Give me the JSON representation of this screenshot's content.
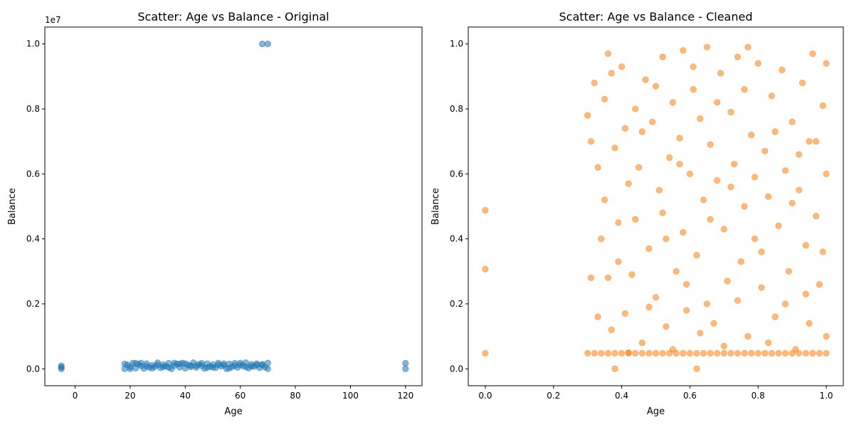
{
  "figure": {
    "charts": [
      {
        "type": "scatter",
        "title": "Scatter: Age vs Balance - Original",
        "xlabel": "Age",
        "ylabel": "Balance",
        "xlim": [
          -11,
          126
        ],
        "ylim": [
          -520000,
          10520000
        ],
        "xticks": [
          0,
          20,
          40,
          60,
          80,
          100,
          120
        ],
        "xtick_labels": [
          "0",
          "20",
          "40",
          "60",
          "80",
          "100",
          "120"
        ],
        "yticks": [
          0,
          2000000,
          4000000,
          6000000,
          8000000,
          10000000
        ],
        "ytick_labels": [
          "0.0",
          "0.2",
          "0.4",
          "0.6",
          "0.8",
          "1.0"
        ],
        "offset_label": "1e7",
        "color": "#1f77b4",
        "alpha": 0.55,
        "points": [
          [
            -5,
            0
          ],
          [
            -5,
            50000
          ],
          [
            -5,
            90000
          ],
          [
            120,
            0
          ],
          [
            120,
            170000
          ],
          [
            68,
            10000000
          ],
          [
            70,
            10000000
          ],
          [
            18,
            0
          ],
          [
            19,
            120000
          ],
          [
            20,
            60000
          ],
          [
            21,
            180000
          ],
          [
            22,
            20000
          ],
          [
            23,
            140000
          ],
          [
            24,
            90000
          ],
          [
            25,
            10000
          ],
          [
            26,
            160000
          ],
          [
            27,
            40000
          ],
          [
            28,
            110000
          ],
          [
            29,
            70000
          ],
          [
            30,
            190000
          ],
          [
            31,
            30000
          ],
          [
            32,
            130000
          ],
          [
            33,
            80000
          ],
          [
            34,
            170000
          ],
          [
            35,
            0
          ],
          [
            36,
            100000
          ],
          [
            37,
            150000
          ],
          [
            38,
            50000
          ],
          [
            39,
            180000
          ],
          [
            40,
            20000
          ],
          [
            41,
            120000
          ],
          [
            42,
            60000
          ],
          [
            43,
            190000
          ],
          [
            44,
            40000
          ],
          [
            45,
            140000
          ],
          [
            46,
            90000
          ],
          [
            47,
            10000
          ],
          [
            48,
            160000
          ],
          [
            49,
            70000
          ],
          [
            50,
            130000
          ],
          [
            51,
            30000
          ],
          [
            52,
            180000
          ],
          [
            53,
            80000
          ],
          [
            54,
            110000
          ],
          [
            55,
            0
          ],
          [
            56,
            150000
          ],
          [
            57,
            60000
          ],
          [
            58,
            170000
          ],
          [
            59,
            40000
          ],
          [
            60,
            120000
          ],
          [
            61,
            90000
          ],
          [
            62,
            190000
          ],
          [
            63,
            20000
          ],
          [
            64,
            140000
          ],
          [
            65,
            70000
          ],
          [
            66,
            160000
          ],
          [
            67,
            30000
          ],
          [
            68,
            110000
          ],
          [
            69,
            50000
          ],
          [
            70,
            180000
          ],
          [
            70,
            0
          ],
          [
            18,
            150000
          ],
          [
            22,
            170000
          ],
          [
            26,
            80000
          ],
          [
            30,
            120000
          ],
          [
            34,
            40000
          ],
          [
            38,
            150000
          ],
          [
            42,
            100000
          ],
          [
            46,
            170000
          ],
          [
            50,
            50000
          ],
          [
            54,
            160000
          ],
          [
            58,
            100000
          ],
          [
            62,
            60000
          ],
          [
            66,
            120000
          ],
          [
            20,
            0
          ],
          [
            24,
            180000
          ],
          [
            28,
            20000
          ],
          [
            32,
            60000
          ],
          [
            36,
            180000
          ],
          [
            40,
            160000
          ],
          [
            44,
            100000
          ],
          [
            48,
            40000
          ],
          [
            52,
            120000
          ],
          [
            56,
            20000
          ],
          [
            60,
            180000
          ],
          [
            64,
            80000
          ],
          [
            68,
            140000
          ]
        ]
      },
      {
        "type": "scatter",
        "title": "Scatter: Age vs Balance - Cleaned",
        "xlabel": "Age",
        "ylabel": "Balance",
        "xlim": [
          -0.05,
          1.05
        ],
        "ylim": [
          -0.052,
          1.052
        ],
        "xticks": [
          0,
          0.2,
          0.4,
          0.6,
          0.8,
          1.0
        ],
        "xtick_labels": [
          "0.0",
          "0.2",
          "0.4",
          "0.6",
          "0.8",
          "1.0"
        ],
        "yticks": [
          0,
          0.2,
          0.4,
          0.6,
          0.8,
          1.0
        ],
        "ytick_labels": [
          "0.0",
          "0.2",
          "0.4",
          "0.6",
          "0.8",
          "1.0"
        ],
        "color": "#ff7f0e",
        "alpha": 0.55,
        "points": [
          [
            0.0,
            0.488
          ],
          [
            0.0,
            0.307
          ],
          [
            0.0,
            0.048
          ],
          [
            0.38,
            0.0
          ],
          [
            0.62,
            0.0
          ],
          [
            0.3,
            0.78
          ],
          [
            0.31,
            0.28
          ],
          [
            0.32,
            0.88
          ],
          [
            0.33,
            0.62
          ],
          [
            0.34,
            0.4
          ],
          [
            0.35,
            0.83
          ],
          [
            0.36,
            0.97
          ],
          [
            0.36,
            0.28
          ],
          [
            0.37,
            0.12
          ],
          [
            0.38,
            0.68
          ],
          [
            0.39,
            0.45
          ],
          [
            0.4,
            0.93
          ],
          [
            0.41,
            0.74
          ],
          [
            0.41,
            0.17
          ],
          [
            0.42,
            0.57
          ],
          [
            0.43,
            0.29
          ],
          [
            0.44,
            0.8
          ],
          [
            0.45,
            0.62
          ],
          [
            0.46,
            0.08
          ],
          [
            0.47,
            0.89
          ],
          [
            0.48,
            0.37
          ],
          [
            0.49,
            0.76
          ],
          [
            0.5,
            0.22
          ],
          [
            0.51,
            0.55
          ],
          [
            0.52,
            0.96
          ],
          [
            0.52,
            0.48
          ],
          [
            0.53,
            0.13
          ],
          [
            0.54,
            0.65
          ],
          [
            0.55,
            0.82
          ],
          [
            0.56,
            0.3
          ],
          [
            0.57,
            0.71
          ],
          [
            0.58,
            0.98
          ],
          [
            0.58,
            0.42
          ],
          [
            0.59,
            0.18
          ],
          [
            0.6,
            0.6
          ],
          [
            0.61,
            0.86
          ],
          [
            0.62,
            0.35
          ],
          [
            0.63,
            0.77
          ],
          [
            0.64,
            0.52
          ],
          [
            0.65,
            0.99
          ],
          [
            0.65,
            0.2
          ],
          [
            0.66,
            0.69
          ],
          [
            0.67,
            0.14
          ],
          [
            0.68,
            0.58
          ],
          [
            0.69,
            0.91
          ],
          [
            0.7,
            0.43
          ],
          [
            0.71,
            0.27
          ],
          [
            0.72,
            0.79
          ],
          [
            0.73,
            0.63
          ],
          [
            0.74,
            0.96
          ],
          [
            0.75,
            0.33
          ],
          [
            0.76,
            0.5
          ],
          [
            0.76,
            0.86
          ],
          [
            0.77,
            0.1
          ],
          [
            0.78,
            0.72
          ],
          [
            0.79,
            0.4
          ],
          [
            0.8,
            0.94
          ],
          [
            0.81,
            0.25
          ],
          [
            0.82,
            0.67
          ],
          [
            0.83,
            0.53
          ],
          [
            0.84,
            0.84
          ],
          [
            0.85,
            0.16
          ],
          [
            0.86,
            0.44
          ],
          [
            0.87,
            0.92
          ],
          [
            0.88,
            0.61
          ],
          [
            0.89,
            0.3
          ],
          [
            0.9,
            0.76
          ],
          [
            0.91,
            0.06
          ],
          [
            0.92,
            0.55
          ],
          [
            0.93,
            0.88
          ],
          [
            0.94,
            0.38
          ],
          [
            0.95,
            0.7
          ],
          [
            0.95,
            0.14
          ],
          [
            0.96,
            0.97
          ],
          [
            0.97,
            0.47
          ],
          [
            0.98,
            0.26
          ],
          [
            0.99,
            0.81
          ],
          [
            1.0,
            0.6
          ],
          [
            1.0,
            0.1
          ],
          [
            1.0,
            0.94
          ],
          [
            0.31,
            0.7
          ],
          [
            0.33,
            0.16
          ],
          [
            0.35,
            0.52
          ],
          [
            0.37,
            0.91
          ],
          [
            0.39,
            0.33
          ],
          [
            0.42,
            0.05
          ],
          [
            0.44,
            0.46
          ],
          [
            0.46,
            0.73
          ],
          [
            0.48,
            0.19
          ],
          [
            0.5,
            0.87
          ],
          [
            0.53,
            0.4
          ],
          [
            0.55,
            0.06
          ],
          [
            0.57,
            0.63
          ],
          [
            0.59,
            0.26
          ],
          [
            0.61,
            0.93
          ],
          [
            0.63,
            0.11
          ],
          [
            0.66,
            0.46
          ],
          [
            0.68,
            0.82
          ],
          [
            0.7,
            0.07
          ],
          [
            0.72,
            0.56
          ],
          [
            0.74,
            0.21
          ],
          [
            0.77,
            0.99
          ],
          [
            0.79,
            0.59
          ],
          [
            0.81,
            0.36
          ],
          [
            0.83,
            0.08
          ],
          [
            0.85,
            0.73
          ],
          [
            0.88,
            0.2
          ],
          [
            0.9,
            0.51
          ],
          [
            0.92,
            0.66
          ],
          [
            0.94,
            0.23
          ],
          [
            0.97,
            0.7
          ],
          [
            0.99,
            0.36
          ],
          [
            0.3,
            0.048
          ],
          [
            0.32,
            0.048
          ],
          [
            0.34,
            0.048
          ],
          [
            0.36,
            0.048
          ],
          [
            0.38,
            0.048
          ],
          [
            0.4,
            0.048
          ],
          [
            0.42,
            0.048
          ],
          [
            0.44,
            0.048
          ],
          [
            0.46,
            0.048
          ],
          [
            0.48,
            0.048
          ],
          [
            0.5,
            0.048
          ],
          [
            0.52,
            0.048
          ],
          [
            0.54,
            0.048
          ],
          [
            0.56,
            0.048
          ],
          [
            0.58,
            0.048
          ],
          [
            0.6,
            0.048
          ],
          [
            0.62,
            0.048
          ],
          [
            0.64,
            0.048
          ],
          [
            0.66,
            0.048
          ],
          [
            0.68,
            0.048
          ],
          [
            0.7,
            0.048
          ],
          [
            0.72,
            0.048
          ],
          [
            0.74,
            0.048
          ],
          [
            0.76,
            0.048
          ],
          [
            0.78,
            0.048
          ],
          [
            0.8,
            0.048
          ],
          [
            0.82,
            0.048
          ],
          [
            0.84,
            0.048
          ],
          [
            0.86,
            0.048
          ],
          [
            0.88,
            0.048
          ],
          [
            0.9,
            0.048
          ],
          [
            0.92,
            0.048
          ],
          [
            0.94,
            0.048
          ],
          [
            0.96,
            0.048
          ],
          [
            0.98,
            0.048
          ],
          [
            1.0,
            0.048
          ]
        ]
      }
    ]
  },
  "chart_data": [
    {
      "type": "scatter",
      "title": "Scatter: Age vs Balance - Original",
      "xlabel": "Age",
      "ylabel": "Balance",
      "xlim": [
        -11,
        126
      ],
      "ylim": [
        -520000,
        10520000
      ],
      "y_scale_label": "1e7",
      "grid": false,
      "legend": "none",
      "series": [
        {
          "color": "#1f77b4",
          "points_summary": "dense band of points for Age 18-70 with Balance approx 0-200000; outliers at Age -5 (Balance ~0-90000), Age 120 (Balance ~0-170000), Age 68 and 70 (Balance 10000000)"
        }
      ]
    },
    {
      "type": "scatter",
      "title": "Scatter: Age vs Balance - Cleaned",
      "xlabel": "Age",
      "ylabel": "Balance",
      "xlim": [
        -0.05,
        1.05
      ],
      "ylim": [
        -0.052,
        1.052
      ],
      "grid": false,
      "legend": "none",
      "series": [
        {
          "color": "#ff7f0e",
          "points_summary": "points scattered across Age 0.3-1.0 and Balance 0-1.0; dense horizontal line at Balance ~0.048 for Age 0.3-1.0; isolated points at Age 0.0 with Balance 0.488, 0.307, 0.048"
        }
      ]
    }
  ]
}
